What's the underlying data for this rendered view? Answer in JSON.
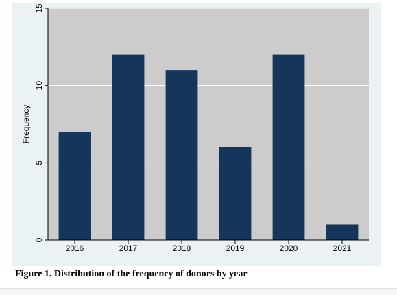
{
  "chart_data": {
    "type": "bar",
    "categories": [
      "2016",
      "2017",
      "2018",
      "2019",
      "2020",
      "2021"
    ],
    "values": [
      7,
      12,
      11,
      6,
      12,
      1
    ],
    "title": "",
    "xlabel": "",
    "ylabel": "Frequency",
    "ylim": [
      0,
      15
    ],
    "yticks": [
      "0",
      "5",
      "10",
      "15"
    ],
    "grid": true,
    "colors": {
      "bar": "#15355a",
      "plot_background": "#cccccc",
      "panel_background": "#eaf2f3",
      "grid": "#ffffff"
    }
  },
  "caption": "Figure 1. Distribution of the frequency of donors by year"
}
